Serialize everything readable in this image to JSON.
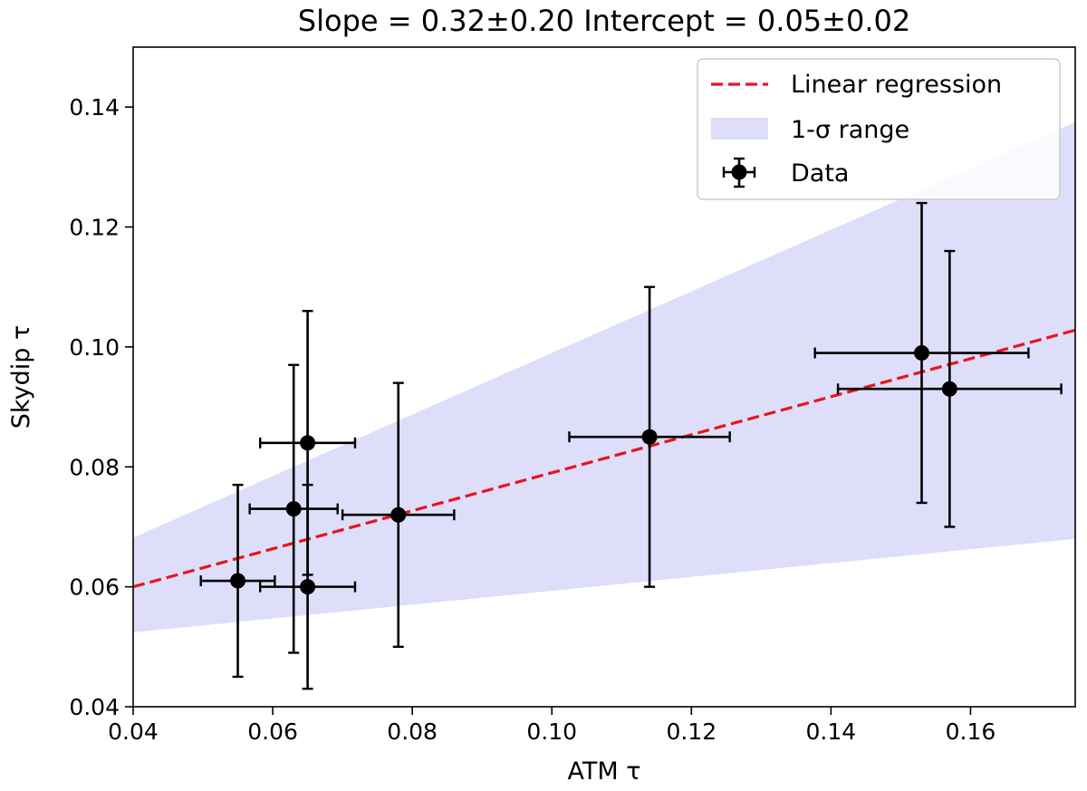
{
  "chart_data": {
    "type": "scatter",
    "title": "Slope = 0.32±0.20 Intercept = 0.05±0.02",
    "xlabel": "ATM τ",
    "ylabel": "Skydip τ",
    "xlim": [
      0.04,
      0.175
    ],
    "ylim": [
      0.04,
      0.15
    ],
    "xticks": [
      0.04,
      0.06,
      0.08,
      0.1,
      0.12,
      0.14,
      0.16
    ],
    "xtick_labels": [
      "0.04",
      "0.06",
      "0.08",
      "0.10",
      "0.12",
      "0.14",
      "0.16"
    ],
    "yticks": [
      0.04,
      0.06,
      0.08,
      0.1,
      0.12,
      0.14
    ],
    "ytick_labels": [
      "0.04",
      "0.06",
      "0.08",
      "0.10",
      "0.12",
      "0.14"
    ],
    "grid": false,
    "legend_position": "top-right",
    "regression": {
      "name": "Linear regression",
      "x": [
        0.04,
        0.175
      ],
      "y": [
        0.06,
        0.1028
      ],
      "color": "#e8141e"
    },
    "band": {
      "name": "1-σ range",
      "x": [
        0.04,
        0.175
      ],
      "upper": [
        0.0682,
        0.1375
      ],
      "lower": [
        0.0524,
        0.068
      ],
      "color": "#dedefa"
    },
    "data_series": {
      "name": "Data",
      "color": "#000000",
      "points": [
        {
          "x": 0.055,
          "y": 0.061,
          "xerr": 0.0053,
          "yerr": 0.016
        },
        {
          "x": 0.063,
          "y": 0.073,
          "xerr": 0.0063,
          "yerr": 0.024
        },
        {
          "x": 0.065,
          "y": 0.084,
          "xerr": 0.0068,
          "yerr": 0.022
        },
        {
          "x": 0.065,
          "y": 0.06,
          "xerr": 0.0068,
          "yerr": 0.017
        },
        {
          "x": 0.078,
          "y": 0.072,
          "xerr": 0.008,
          "yerr": 0.022
        },
        {
          "x": 0.114,
          "y": 0.085,
          "xerr": 0.0115,
          "yerr": 0.025
        },
        {
          "x": 0.153,
          "y": 0.099,
          "xerr": 0.0153,
          "yerr": 0.025
        },
        {
          "x": 0.157,
          "y": 0.093,
          "xerr": 0.016,
          "yerr": 0.023
        }
      ]
    }
  }
}
